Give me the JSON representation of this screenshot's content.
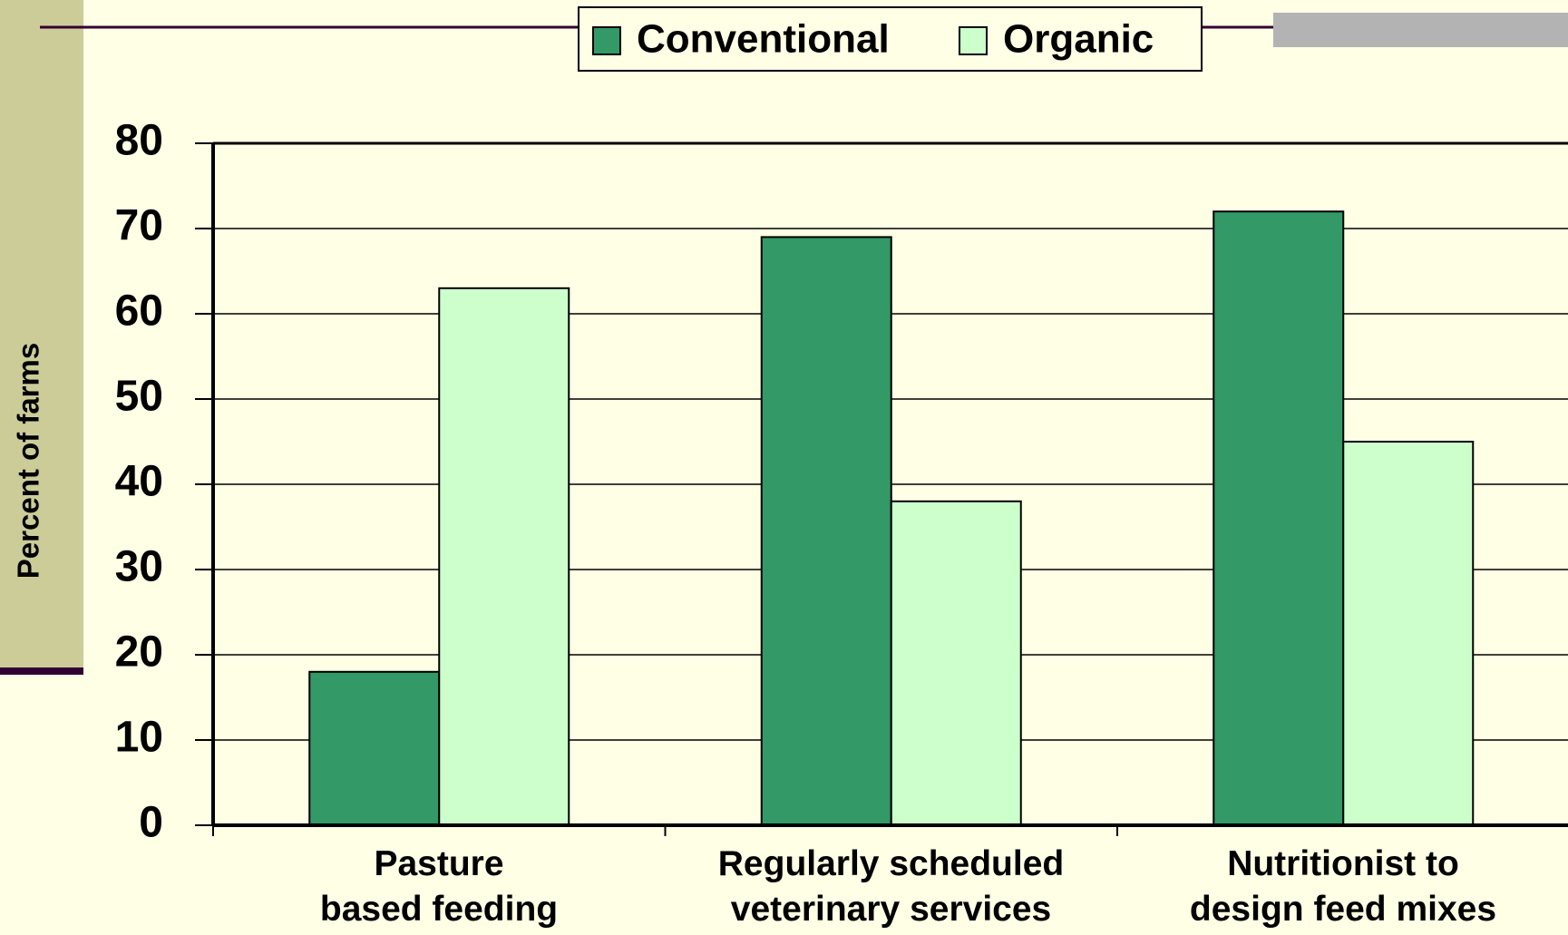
{
  "chart_data": {
    "type": "bar",
    "y_label": "Percent of farms",
    "categories": [
      "Pasture\nbased feeding",
      "Regularly scheduled\nveterinary services",
      "Nutritionist to\ndesign feed mixes"
    ],
    "series": [
      {
        "name": "Conventional",
        "color": "#339966",
        "values": [
          18,
          69,
          72
        ]
      },
      {
        "name": "Organic",
        "color": "#ccffcc",
        "values": [
          63,
          38,
          45
        ]
      }
    ],
    "ylim": [
      0,
      80
    ],
    "yticks": [
      0,
      10,
      20,
      30,
      40,
      50,
      60,
      70,
      80
    ],
    "grid": true,
    "legend": "top"
  }
}
